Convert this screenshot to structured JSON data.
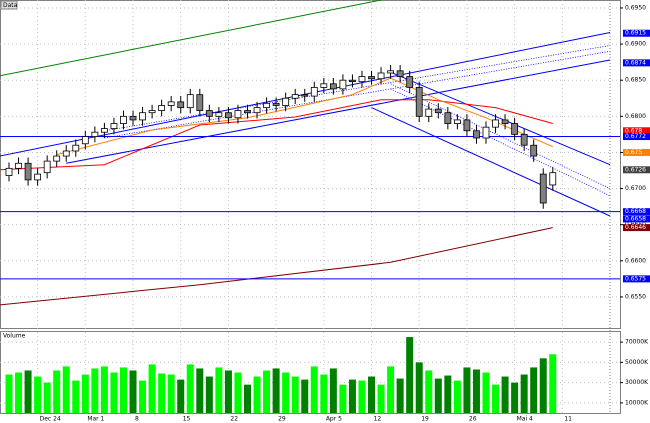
{
  "chart_data": {
    "type": "candlestick",
    "title": "Data",
    "categories": [
      null,
      null,
      null,
      "Dec 24",
      null,
      null,
      null,
      null,
      "Mar 1",
      null,
      null,
      null,
      null,
      "8",
      null,
      null,
      null,
      null,
      "15",
      null,
      null,
      null,
      null,
      "22",
      null,
      null,
      null,
      null,
      "29",
      null,
      null,
      null,
      null,
      "Apr 5",
      null,
      null,
      null,
      null,
      "12",
      null,
      null,
      null,
      null,
      "19",
      null,
      null,
      null,
      null,
      "26",
      null,
      null,
      null,
      null,
      "Mai 4",
      null,
      null,
      null,
      null,
      "11"
    ],
    "open": [
      0.6718,
      0.6728,
      0.6735,
      0.6712,
      0.6722,
      0.6738,
      0.6745,
      0.6752,
      0.6762,
      0.6772,
      0.6778,
      0.6783,
      0.679,
      0.68,
      0.6795,
      0.6805,
      0.6808,
      0.6815,
      0.682,
      0.6812,
      0.683,
      0.6808,
      0.68,
      0.6805,
      0.6798,
      0.6808,
      0.6805,
      0.6812,
      0.6818,
      0.6815,
      0.6825,
      0.683,
      0.6828,
      0.684,
      0.6845,
      0.6838,
      0.685,
      0.6848,
      0.6855,
      0.6852,
      0.686,
      0.6863,
      0.6855,
      0.684,
      0.68,
      0.681,
      0.6805,
      0.679,
      0.6795,
      0.678,
      0.677,
      0.6785,
      0.6795,
      0.679,
      0.6775,
      0.676,
      0.672,
      0.6705,
      null
    ],
    "high": [
      0.6736,
      0.6743,
      0.6743,
      0.6728,
      0.6746,
      0.6753,
      0.676,
      0.6768,
      0.678,
      0.6786,
      0.6791,
      0.6798,
      0.6808,
      0.6808,
      0.6813,
      0.6816,
      0.6823,
      0.6828,
      0.6828,
      0.6838,
      0.6838,
      0.6816,
      0.6813,
      0.6813,
      0.6816,
      0.6816,
      0.682,
      0.6826,
      0.6826,
      0.6833,
      0.6838,
      0.6838,
      0.6848,
      0.6853,
      0.6853,
      0.6858,
      0.6858,
      0.6863,
      0.6863,
      0.6868,
      0.6871,
      0.6871,
      0.6863,
      0.6848,
      0.6818,
      0.6818,
      0.6813,
      0.6803,
      0.6803,
      0.6788,
      0.6793,
      0.6803,
      0.6803,
      0.6798,
      0.6783,
      0.6768,
      0.6728,
      0.673,
      null
    ],
    "low": [
      0.671,
      0.672,
      0.6704,
      0.6704,
      0.6714,
      0.673,
      0.6737,
      0.6744,
      0.6754,
      0.6764,
      0.677,
      0.6775,
      0.6782,
      0.6787,
      0.6787,
      0.6797,
      0.68,
      0.6807,
      0.6804,
      0.6804,
      0.68,
      0.6792,
      0.6792,
      0.679,
      0.679,
      0.6797,
      0.6797,
      0.6804,
      0.6807,
      0.6807,
      0.6817,
      0.682,
      0.682,
      0.6832,
      0.683,
      0.683,
      0.684,
      0.684,
      0.6844,
      0.6844,
      0.6852,
      0.6847,
      0.6832,
      0.6792,
      0.6792,
      0.6797,
      0.6782,
      0.6782,
      0.6772,
      0.6762,
      0.6762,
      0.6777,
      0.6782,
      0.6767,
      0.6752,
      0.6737,
      0.6672,
      0.6697,
      null
    ],
    "close": [
      0.6728,
      0.6735,
      0.6712,
      0.672,
      0.6738,
      0.6745,
      0.6752,
      0.676,
      0.6772,
      0.6778,
      0.6783,
      0.679,
      0.68,
      0.6795,
      0.6805,
      0.6808,
      0.6815,
      0.682,
      0.6812,
      0.683,
      0.6808,
      0.68,
      0.6805,
      0.6798,
      0.6808,
      0.6805,
      0.6812,
      0.6818,
      0.6815,
      0.6825,
      0.683,
      0.6828,
      0.684,
      0.6845,
      0.6838,
      0.685,
      0.6848,
      0.6855,
      0.6852,
      0.686,
      0.6863,
      0.6855,
      0.684,
      0.68,
      0.681,
      0.6805,
      0.679,
      0.6795,
      0.678,
      0.677,
      0.6785,
      0.6795,
      0.679,
      0.6775,
      0.676,
      0.6745,
      0.668,
      0.6722,
      null
    ],
    "up_color": "#ffffff",
    "down_color": "#808080",
    "ylim": [
      0.6507,
      0.6961
    ],
    "yticks": [
      {
        "value": 0.655,
        "label": "0.6550"
      },
      {
        "value": 0.66,
        "label": "0.6600"
      },
      {
        "value": 0.665,
        "label": "0.6650"
      },
      {
        "value": 0.67,
        "label": "0.6700"
      },
      {
        "value": 0.675,
        "label": "0.6750"
      },
      {
        "value": 0.68,
        "label": "0.6800"
      },
      {
        "value": 0.685,
        "label": "0.6850"
      },
      {
        "value": 0.69,
        "label": "0.6900"
      },
      {
        "value": 0.695,
        "label": "0.6950"
      }
    ],
    "grid": true,
    "price_markers": [
      {
        "value": 0.6915,
        "color": "#0000ff",
        "line": false
      },
      {
        "value": 0.6874,
        "color": "#0000ff",
        "line": false
      },
      {
        "value": 0.678,
        "color": "#ff0000",
        "line": false
      },
      {
        "value": 0.6772,
        "color": "#0000ff",
        "line": true
      },
      {
        "value": 0.675,
        "color": "#ff8000",
        "line": false
      },
      {
        "value": 0.6726,
        "color": "#404040",
        "line": false
      },
      {
        "value": 0.6668,
        "color": "#0000ff",
        "line": true
      },
      {
        "value": 0.6658,
        "color": "#0000ff",
        "line": false
      },
      {
        "value": 0.6646,
        "color": "#800000",
        "line": false
      },
      {
        "value": 0.6575,
        "color": "#0000ff",
        "line": true
      }
    ],
    "overlays": [
      {
        "color": "#008000",
        "style": "solid",
        "x": [
          -1,
          39
        ],
        "y": [
          0.6856,
          0.6961
        ]
      },
      {
        "color": "#0000ff",
        "style": "solid",
        "x": [
          -1,
          63
        ],
        "y": [
          0.6745,
          0.6916
        ]
      },
      {
        "color": "#0000ff",
        "style": "solid",
        "x": [
          6,
          63
        ],
        "y": [
          0.6735,
          0.6878
        ]
      },
      {
        "color": "#0000ff",
        "style": "dotted",
        "x": [
          10,
          63
        ],
        "y": [
          0.678,
          0.6898
        ]
      },
      {
        "color": "#0000ff",
        "style": "dotted",
        "x": [
          10,
          63
        ],
        "y": [
          0.677,
          0.689
        ]
      },
      {
        "color": "#0000ff",
        "style": "solid",
        "x": [
          40,
          63
        ],
        "y": [
          0.6861,
          0.6733
        ]
      },
      {
        "color": "#0000ff",
        "style": "solid",
        "x": [
          38,
          63
        ],
        "y": [
          0.6812,
          0.6662
        ]
      },
      {
        "color": "#0000ff",
        "style": "dotted",
        "x": [
          40,
          63
        ],
        "y": [
          0.6845,
          0.67
        ]
      },
      {
        "color": "#0000ff",
        "style": "dotted",
        "x": [
          40,
          63
        ],
        "y": [
          0.6838,
          0.669
        ]
      },
      {
        "color": "#ff0000",
        "style": "solid",
        "x": [
          -1,
          10,
          20,
          30,
          39,
          44,
          51,
          57
        ],
        "y": [
          0.6726,
          0.6733,
          0.6788,
          0.6799,
          0.6823,
          0.6823,
          0.6812,
          0.679
        ]
      },
      {
        "color": "#ff8000",
        "style": "solid",
        "x": [
          5,
          15,
          25,
          36,
          40,
          45,
          50,
          57
        ],
        "y": [
          0.6747,
          0.6781,
          0.6798,
          0.683,
          0.6853,
          0.6823,
          0.6798,
          0.6758
        ]
      },
      {
        "color": "#800000",
        "style": "solid",
        "x": [
          -1,
          20,
          40,
          57
        ],
        "y": [
          0.6539,
          0.6567,
          0.6598,
          0.6646
        ]
      }
    ],
    "volume": {
      "title": "Volume",
      "values": [
        38000,
        40000,
        42000,
        36000,
        30000,
        42000,
        46000,
        32000,
        38000,
        44000,
        46000,
        40000,
        45000,
        42000,
        32000,
        48000,
        39000,
        38000,
        33000,
        48000,
        44000,
        36000,
        45000,
        42000,
        40000,
        28000,
        36000,
        42000,
        44000,
        40000,
        36000,
        33000,
        46000,
        38000,
        44000,
        28000,
        33000,
        32000,
        36000,
        28000,
        46000,
        34000,
        75000,
        50000,
        42000,
        34000,
        37000,
        32000,
        45000,
        43000,
        40000,
        28000,
        36000,
        30000,
        38000,
        45000,
        54000,
        58000,
        null
      ],
      "ylim": [
        0,
        80000
      ],
      "yticks": [
        {
          "value": 10000,
          "label": "10000K"
        },
        {
          "value": 30000,
          "label": "30000K"
        },
        {
          "value": 50000,
          "label": "50000K"
        },
        {
          "value": 70000,
          "label": "70000K"
        }
      ],
      "up_color": "#00ff00",
      "down_color": "#008000"
    }
  }
}
